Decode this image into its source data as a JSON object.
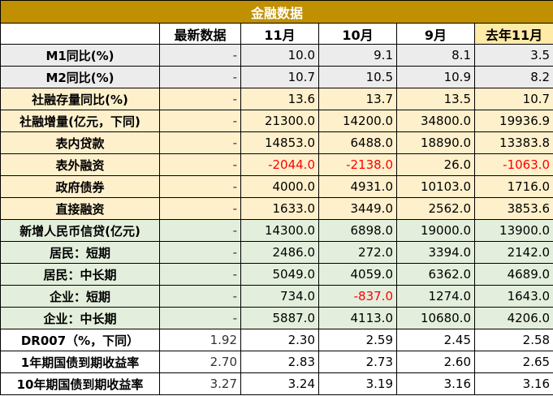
{
  "title": "金融数据",
  "headers": [
    "",
    "最新数据",
    "11月",
    "10月",
    "9月",
    "去年11月"
  ],
  "rows": [
    {
      "group": "m",
      "label": "M1同比(%)",
      "latest": "-",
      "values": [
        "10.0",
        "9.1",
        "8.1",
        "3.5"
      ]
    },
    {
      "group": "m",
      "label": "M2同比(%)",
      "latest": "-",
      "values": [
        "10.7",
        "10.5",
        "10.9",
        "8.2"
      ]
    },
    {
      "group": "s",
      "label": "社融存量同比(%)",
      "latest": "-",
      "values": [
        "13.6",
        "13.7",
        "13.5",
        "10.7"
      ]
    },
    {
      "group": "s",
      "label": "社融增量(亿元，下同)",
      "latest": "-",
      "values": [
        "21300.0",
        "14200.0",
        "34800.0",
        "19936.9"
      ]
    },
    {
      "group": "s",
      "label": "表内贷款",
      "latest": "-",
      "values": [
        "14853.0",
        "6488.0",
        "18890.0",
        "13383.8"
      ]
    },
    {
      "group": "s",
      "label": "表外融资",
      "latest": "-",
      "values": [
        "-2044.0",
        "-2138.0",
        "26.0",
        "-1063.0"
      ]
    },
    {
      "group": "s",
      "label": "政府债券",
      "latest": "-",
      "values": [
        "4000.0",
        "4931.0",
        "10103.0",
        "1716.0"
      ]
    },
    {
      "group": "s",
      "label": "直接融资",
      "latest": "-",
      "values": [
        "1633.0",
        "3449.0",
        "2562.0",
        "3853.6"
      ]
    },
    {
      "group": "c",
      "label": "新增人民币信贷(亿元)",
      "latest": "-",
      "values": [
        "14300.0",
        "6898.0",
        "19000.0",
        "13900.0"
      ]
    },
    {
      "group": "c",
      "label": "居民：短期",
      "latest": "-",
      "values": [
        "2486.0",
        "272.0",
        "3394.0",
        "2142.0"
      ]
    },
    {
      "group": "c",
      "label": "居民：中长期",
      "latest": "-",
      "values": [
        "5049.0",
        "4059.0",
        "6362.0",
        "4689.0"
      ]
    },
    {
      "group": "c",
      "label": "企业：短期",
      "latest": "-",
      "values": [
        "734.0",
        "-837.0",
        "1274.0",
        "1643.0"
      ]
    },
    {
      "group": "c",
      "label": "企业：中长期",
      "latest": "-",
      "values": [
        "5887.0",
        "4113.0",
        "10680.0",
        "4206.0"
      ]
    },
    {
      "group": "r",
      "label": "DR007（%，下同）",
      "latest": "1.92",
      "values": [
        "2.30",
        "2.59",
        "2.45",
        "2.58"
      ]
    },
    {
      "group": "r",
      "label": "1年期国债到期收益率",
      "latest": "2.70",
      "values": [
        "2.83",
        "2.73",
        "2.60",
        "2.65"
      ]
    },
    {
      "group": "r",
      "label": "10年期国债到期收益率",
      "latest": "3.27",
      "values": [
        "3.24",
        "3.19",
        "3.16",
        "3.16"
      ]
    }
  ],
  "colors": {
    "title_bg": "#c09000",
    "last_year_header_bg": "#ffeaa6",
    "money_bg": "#ececec",
    "social_financing_bg": "#fff0cc",
    "credit_bg": "#e3efdc",
    "negative_text": "#ff0000"
  }
}
